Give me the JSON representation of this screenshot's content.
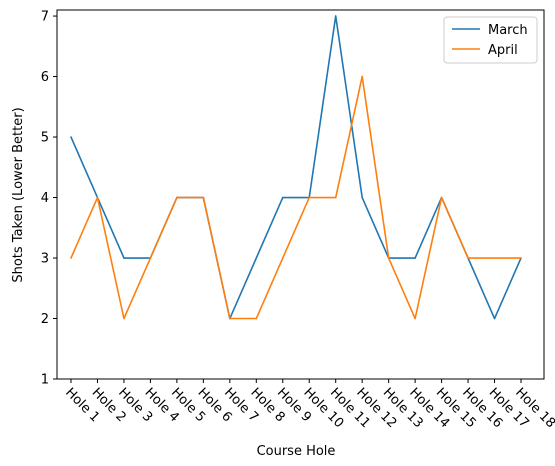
{
  "chart_data": {
    "type": "line",
    "categories": [
      "Hole 1",
      "Hole 2",
      "Hole 3",
      "Hole 4",
      "Hole 5",
      "Hole 6",
      "Hole 7",
      "Hole 8",
      "Hole 9",
      "Hole 10",
      "Hole 11",
      "Hole 12",
      "Hole 13",
      "Hole 14",
      "Hole 15",
      "Hole 16",
      "Hole 17",
      "Hole 18"
    ],
    "series": [
      {
        "name": "March",
        "color": "#1f77b4",
        "values": [
          5,
          4,
          3,
          3,
          4,
          4,
          2,
          3,
          4,
          4,
          7,
          4,
          3,
          3,
          4,
          3,
          2,
          3
        ]
      },
      {
        "name": "April",
        "color": "#ff7f0e",
        "values": [
          3,
          4,
          2,
          3,
          4,
          4,
          2,
          2,
          3,
          4,
          4,
          6,
          3,
          2,
          4,
          3,
          3,
          3
        ]
      }
    ],
    "xlabel": "Course Hole",
    "ylabel": "Shots Taken (Lower Better)",
    "ylim": [
      1,
      7.1
    ],
    "yticks": [
      1,
      2,
      3,
      4,
      5,
      6,
      7
    ],
    "grid": false,
    "legend_position": "upper-right"
  }
}
